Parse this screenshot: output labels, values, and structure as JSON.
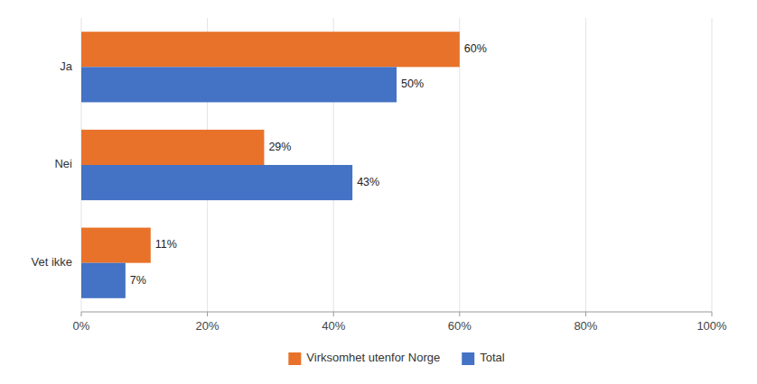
{
  "chart_data": {
    "type": "bar",
    "orientation": "horizontal",
    "categories": [
      "Ja",
      "Nei",
      "Vet ikke"
    ],
    "series": [
      {
        "name": "Virksomhet utenfor Norge",
        "color": "#E8722A",
        "values": [
          60,
          29,
          11
        ],
        "value_labels": [
          "60%",
          "29%",
          "11%"
        ]
      },
      {
        "name": "Total",
        "color": "#4472C4",
        "values": [
          50,
          43,
          7
        ],
        "value_labels": [
          "50%",
          "43%",
          "7%"
        ]
      }
    ],
    "xlim": [
      0,
      100
    ],
    "xticks": [
      {
        "value": 0,
        "label": "0%"
      },
      {
        "value": 20,
        "label": "20%"
      },
      {
        "value": 40,
        "label": "40%"
      },
      {
        "value": 60,
        "label": "60%"
      },
      {
        "value": 80,
        "label": "80%"
      },
      {
        "value": 100,
        "label": "100%"
      }
    ],
    "grid": true,
    "data_labels": true,
    "legend": "bottom"
  }
}
